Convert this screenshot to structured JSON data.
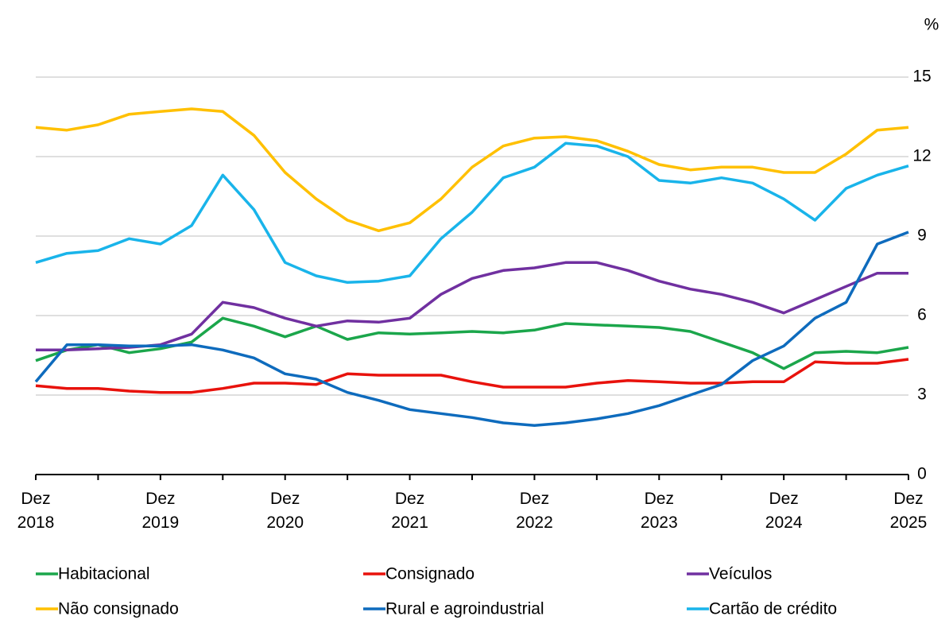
{
  "chart_data": {
    "type": "line",
    "y_label": "%",
    "categories": [
      "Dez 2018",
      null,
      null,
      null,
      "Dez 2019",
      null,
      null,
      null,
      "Dez 2020",
      null,
      null,
      null,
      "Dez 2021",
      null,
      null,
      null,
      "Dez 2022",
      null,
      null,
      null,
      "Dez 2023",
      null,
      null,
      null,
      "Dez 2024",
      null,
      null,
      null,
      "Dez 2025"
    ],
    "ylim": [
      0,
      15
    ],
    "yticks": [
      0,
      3,
      6,
      9,
      12,
      15
    ],
    "grid": true,
    "series": [
      {
        "name": "Habitacional",
        "color": "#1ba64b",
        "values": [
          4.3,
          4.7,
          4.9,
          4.6,
          4.75,
          5.0,
          5.9,
          5.6,
          5.2,
          5.6,
          5.1,
          5.35,
          5.3,
          5.35,
          5.4,
          5.35,
          5.45,
          5.7,
          5.65,
          5.6,
          5.55,
          5.4,
          5.0,
          4.6,
          4.0,
          4.6,
          4.65,
          4.6,
          4.8
        ]
      },
      {
        "name": "Consignado",
        "color": "#e8120c",
        "values": [
          3.35,
          3.25,
          3.25,
          3.15,
          3.1,
          3.1,
          3.25,
          3.45,
          3.45,
          3.4,
          3.8,
          3.75,
          3.75,
          3.75,
          3.5,
          3.3,
          3.3,
          3.3,
          3.45,
          3.55,
          3.5,
          3.45,
          3.45,
          3.5,
          3.5,
          4.25,
          4.2,
          4.2,
          4.35
        ]
      },
      {
        "name": "Veículos",
        "color": "#7030a0",
        "values": [
          4.7,
          4.7,
          4.75,
          4.8,
          4.9,
          5.3,
          6.5,
          6.3,
          5.9,
          5.6,
          5.8,
          5.75,
          5.9,
          6.8,
          7.4,
          7.7,
          7.8,
          8.0,
          8.0,
          7.7,
          7.3,
          7.0,
          6.8,
          6.5,
          6.1,
          6.6,
          7.1,
          7.6,
          7.6
        ]
      },
      {
        "name": "Não consignado",
        "color": "#ffc000",
        "values": [
          13.1,
          13.0,
          13.2,
          13.6,
          13.7,
          13.8,
          13.7,
          12.8,
          11.4,
          10.4,
          9.6,
          9.2,
          9.5,
          10.4,
          11.6,
          12.4,
          12.7,
          12.75,
          12.6,
          12.2,
          11.7,
          11.5,
          11.6,
          11.6,
          11.4,
          11.4,
          12.1,
          13.0,
          13.1
        ]
      },
      {
        "name": "Rural e agroindustrial",
        "color": "#0e6bbd",
        "values": [
          3.5,
          4.9,
          4.9,
          4.85,
          4.85,
          4.9,
          4.7,
          4.4,
          3.8,
          3.6,
          3.1,
          2.8,
          2.45,
          2.3,
          2.15,
          1.95,
          1.85,
          1.95,
          2.1,
          2.3,
          2.6,
          3.0,
          3.4,
          4.3,
          4.85,
          5.9,
          6.5,
          8.7,
          9.15
        ]
      },
      {
        "name": "Cartão de crédito",
        "color": "#19b4ea",
        "values": [
          8.0,
          8.35,
          8.45,
          8.9,
          8.7,
          9.4,
          11.3,
          10.0,
          8.0,
          7.5,
          7.25,
          7.3,
          7.5,
          8.9,
          9.9,
          11.2,
          11.6,
          12.5,
          12.4,
          12.0,
          11.1,
          11.0,
          11.2,
          11.0,
          10.4,
          9.6,
          10.8,
          11.3,
          11.65
        ]
      }
    ]
  }
}
